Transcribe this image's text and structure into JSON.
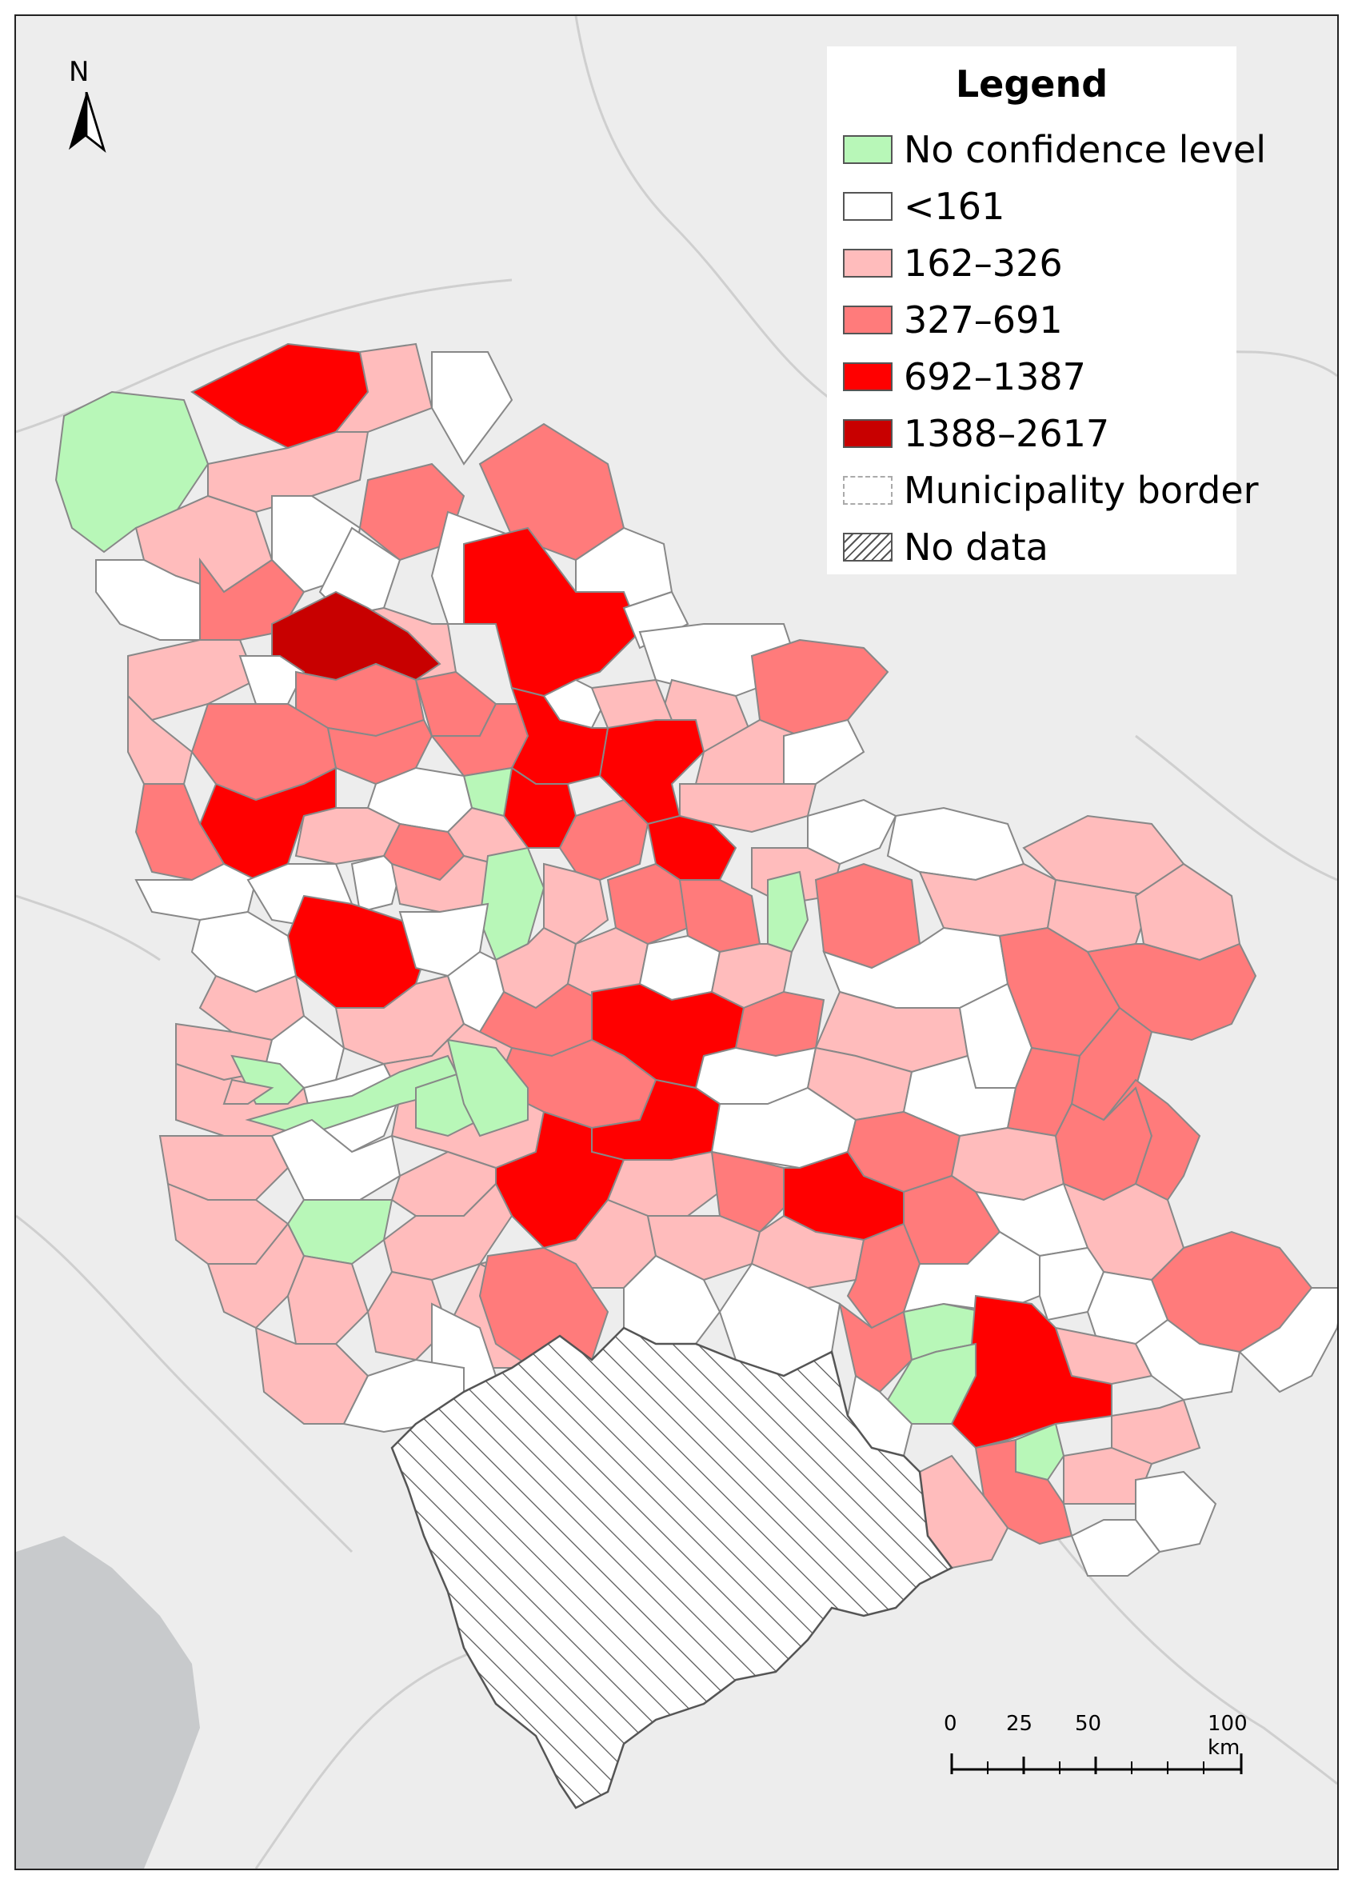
{
  "map": {
    "north_label": "N",
    "colors": {
      "background": "#ededed",
      "neighbor_fill": "#e4e4e4",
      "border": "#8a8a8a",
      "no_confidence": "#b8f7b8",
      "lt161": "#ffffff",
      "c162_326": "#ffbcbc",
      "c327_691": "#ff7b7b",
      "c692_1387": "#ff0000",
      "c1388_2617": "#c80000",
      "sea": "#c8cacc"
    }
  },
  "legend": {
    "title": "Legend",
    "items": [
      {
        "label": "No confidence level",
        "fill": "#b8f7b8",
        "type": "box"
      },
      {
        "label": "<161",
        "fill": "#ffffff",
        "type": "box"
      },
      {
        "label": "162–326",
        "fill": "#ffbcbc",
        "type": "box"
      },
      {
        "label": "327–691",
        "fill": "#ff7b7b",
        "type": "box"
      },
      {
        "label": "692–1387",
        "fill": "#ff0000",
        "type": "box"
      },
      {
        "label": "1388–2617",
        "fill": "#c80000",
        "type": "box"
      },
      {
        "label": "Municipality border",
        "fill": "#ffffff",
        "type": "border"
      },
      {
        "label": "No data",
        "fill": "#ffffff",
        "type": "hatch"
      }
    ]
  },
  "scalebar": {
    "labels": [
      "0",
      "25",
      "50",
      "100 km"
    ]
  }
}
